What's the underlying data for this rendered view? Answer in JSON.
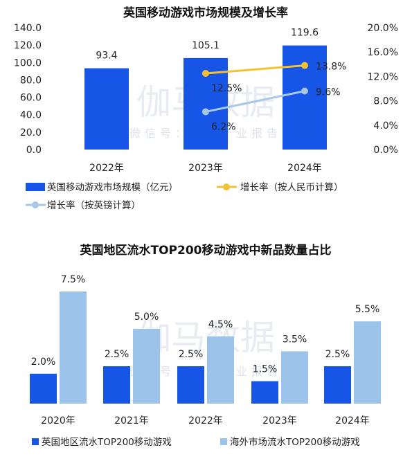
{
  "colors": {
    "dark_blue": "#1755e6",
    "light_blue": "#9cc3ea",
    "gold": "#f2c230",
    "steel_blue": "#a9c7e6"
  },
  "watermark": {
    "text": "伽马数据",
    "subtext": "微信号：游戏产业报告"
  },
  "chart_data": [
    {
      "type": "bar",
      "title": "英国移动游戏市场规模及增长率",
      "categories": [
        "2022年",
        "2023年",
        "2024年"
      ],
      "series": [
        {
          "name": "英国移动游戏市场规模（亿元）",
          "type": "bar",
          "axis": "left",
          "values": [
            93.4,
            105.1,
            119.6
          ],
          "labels": [
            "93.4",
            "105.1",
            "119.6"
          ]
        },
        {
          "name": "增长率（按人民币计算）",
          "type": "line",
          "axis": "right",
          "values": [
            null,
            12.5,
            13.8
          ],
          "labels": [
            "",
            "12.5%",
            "13.8%"
          ]
        },
        {
          "name": "增长率（按英镑计算）",
          "type": "line",
          "axis": "right",
          "values": [
            null,
            6.2,
            9.6
          ],
          "labels": [
            "",
            "6.2%",
            "9.6%"
          ]
        }
      ],
      "left_axis": {
        "ylim": [
          0,
          140
        ],
        "ticks": [
          "0.0",
          "20.0",
          "40.0",
          "60.0",
          "80.0",
          "100.0",
          "120.0",
          "140.0"
        ]
      },
      "right_axis": {
        "ylim": [
          0,
          20
        ],
        "ticks": [
          "0.0%",
          "4.0%",
          "8.0%",
          "12.0%",
          "16.0%",
          "20.0%"
        ]
      },
      "grid": false,
      "legend_position": "bottom"
    },
    {
      "type": "bar",
      "title": "英国地区流水TOP200移动游戏中新品数量占比",
      "categories": [
        "2020年",
        "2021年",
        "2022年",
        "2023年",
        "2024年"
      ],
      "series": [
        {
          "name": "英国地区流水TOP200移动游戏",
          "values": [
            2.0,
            2.5,
            2.5,
            1.5,
            2.5
          ],
          "labels": [
            "2.0%",
            "2.5%",
            "2.5%",
            "1.5%",
            "2.5%"
          ]
        },
        {
          "name": "海外市场流水TOP200移动游戏",
          "values": [
            7.5,
            5.0,
            4.5,
            3.5,
            5.5
          ],
          "labels": [
            "7.5%",
            "5.0%",
            "4.5%",
            "3.5%",
            "5.5%"
          ]
        }
      ],
      "ylim": [
        0,
        8
      ],
      "grid": false,
      "legend_position": "bottom"
    }
  ]
}
